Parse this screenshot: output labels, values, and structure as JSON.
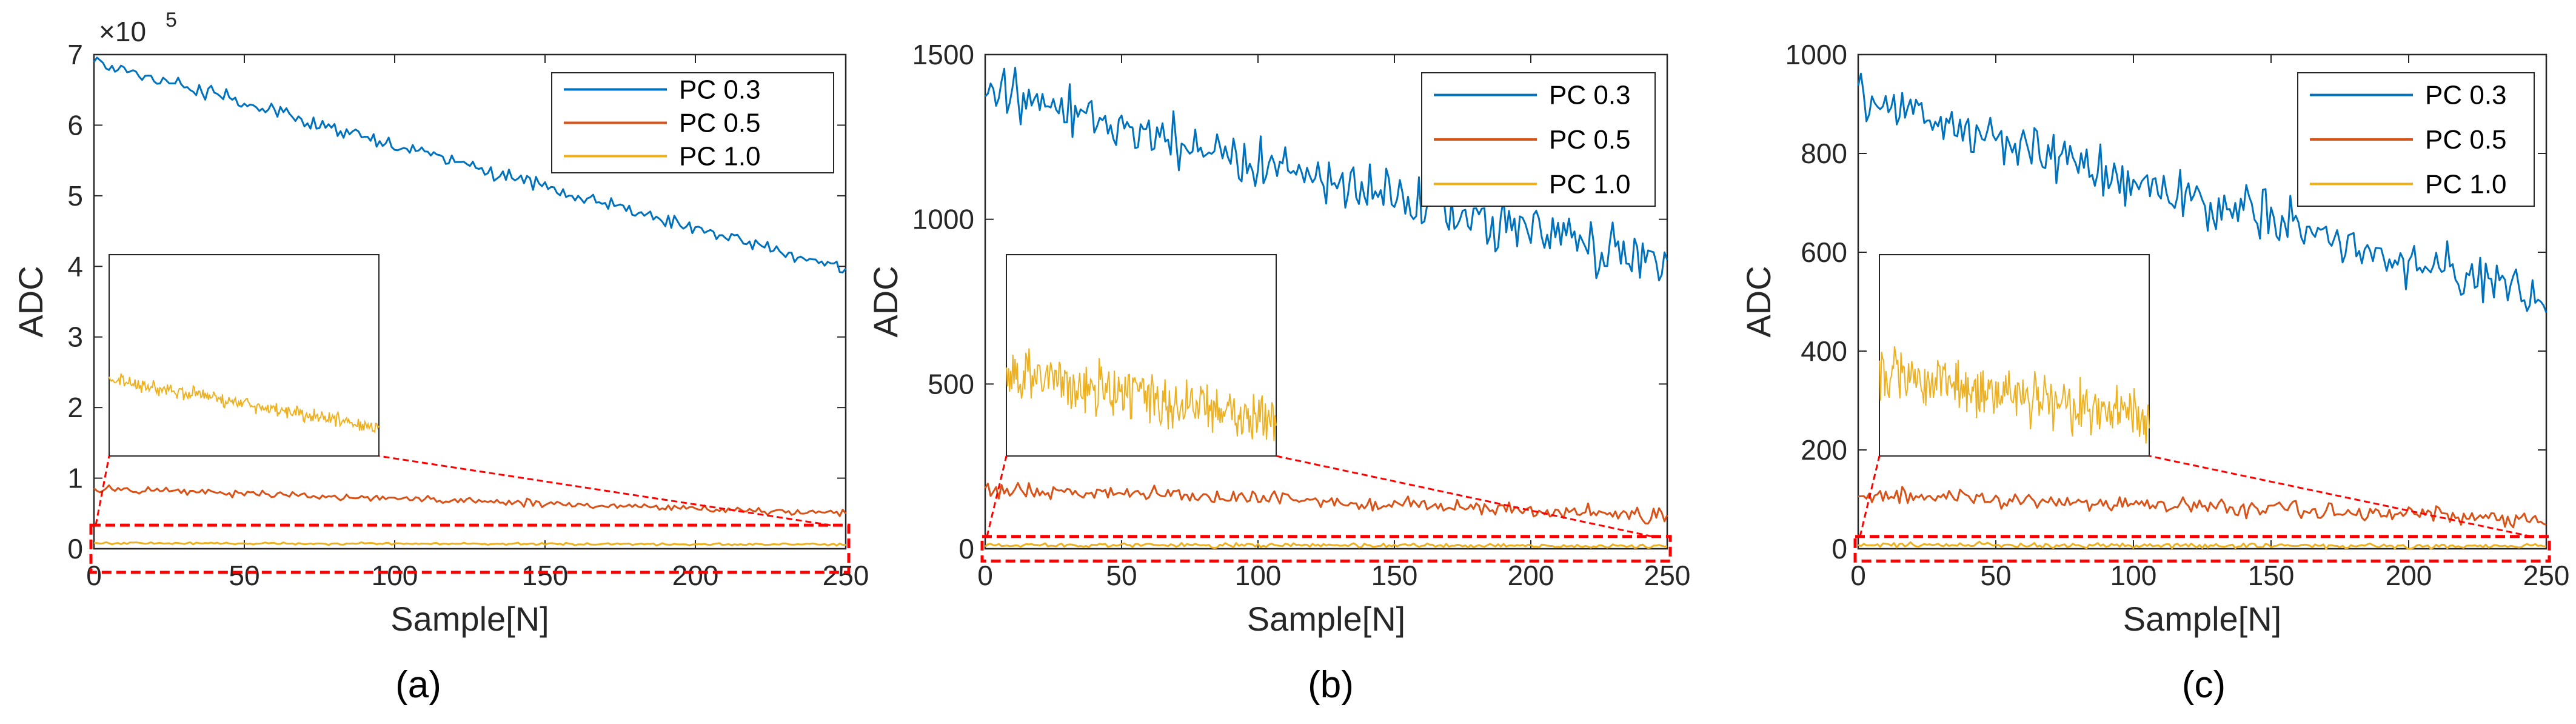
{
  "colors": {
    "pc03": "#0072BD",
    "pc05": "#D95319",
    "pc10": "#EDB120",
    "highlight": "#FF0000",
    "axis": "#262626"
  },
  "chart_data": [
    {
      "type": "line",
      "panel": "a",
      "caption": "(a)",
      "title": "",
      "xlabel": "Sample[N]",
      "ylabel": "ADC",
      "xlim": [
        0,
        250
      ],
      "ylim": [
        0,
        7
      ],
      "xticks": [
        "0",
        "50",
        "100",
        "150",
        "200",
        "250"
      ],
      "yticks": [
        "0",
        "1",
        "2",
        "3",
        "4",
        "5",
        "6",
        "7"
      ],
      "exponent_label": "×10",
      "exponent_power": "5",
      "legend": {
        "location": "top-right",
        "entries": [
          "PC 0.3",
          "PC 0.5",
          "PC 1.0"
        ]
      },
      "series": [
        {
          "name": "PC 0.3",
          "start": 6.9,
          "end": 3.95,
          "noise": 0.06
        },
        {
          "name": "PC 0.5",
          "start": 0.85,
          "end": 0.5,
          "noise": 0.03
        },
        {
          "name": "PC 1.0",
          "start": 0.08,
          "end": 0.06,
          "noise": 0.01
        }
      ],
      "inset": {
        "series": "PC 1.0",
        "zoom_region": {
          "x": [
            0,
            250
          ],
          "y": [
            -0.3,
            0.3
          ]
        },
        "shape": "decreasing noisy trace"
      }
    },
    {
      "type": "line",
      "panel": "b",
      "caption": "(b)",
      "title": "",
      "xlabel": "Sample[N]",
      "ylabel": "ADC",
      "xlim": [
        0,
        250
      ],
      "ylim": [
        0,
        1500
      ],
      "xticks": [
        "0",
        "50",
        "100",
        "150",
        "200",
        "250"
      ],
      "yticks": [
        "0",
        "500",
        "1000",
        "1500"
      ],
      "legend": {
        "location": "top-right",
        "entries": [
          "PC 0.3",
          "PC 0.5",
          "PC 1.0"
        ]
      },
      "series": [
        {
          "name": "PC 0.3",
          "start": 1390,
          "end": 850,
          "noise": 45
        },
        {
          "name": "PC 0.5",
          "start": 185,
          "end": 100,
          "noise": 14
        },
        {
          "name": "PC 1.0",
          "start": 12,
          "end": 8,
          "noise": 4
        }
      ],
      "inset": {
        "series": "PC 1.0",
        "zoom_region": {
          "x": [
            0,
            250
          ],
          "y": [
            -30,
            30
          ]
        },
        "shape": "decreasing noisy trace"
      }
    },
    {
      "type": "line",
      "panel": "c",
      "caption": "(c)",
      "title": "",
      "xlabel": "Sample[N]",
      "ylabel": "ADC",
      "xlim": [
        0,
        250
      ],
      "ylim": [
        0,
        1000
      ],
      "xticks": [
        "0",
        "50",
        "100",
        "150",
        "200",
        "250"
      ],
      "yticks": [
        "0",
        "200",
        "400",
        "600",
        "800",
        "1000"
      ],
      "legend": {
        "location": "top-right",
        "entries": [
          "PC 0.3",
          "PC 0.5",
          "PC 1.0"
        ]
      },
      "series": [
        {
          "name": "PC 0.3",
          "start": 910,
          "end": 500,
          "noise": 30
        },
        {
          "name": "PC 0.5",
          "start": 110,
          "end": 60,
          "noise": 10
        },
        {
          "name": "PC 1.0",
          "start": 8,
          "end": 5,
          "noise": 3
        }
      ],
      "inset": {
        "series": "PC 1.0",
        "zoom_region": {
          "x": [
            0,
            250
          ],
          "y": [
            -20,
            20
          ]
        },
        "shape": "decreasing noisy trace"
      }
    }
  ]
}
